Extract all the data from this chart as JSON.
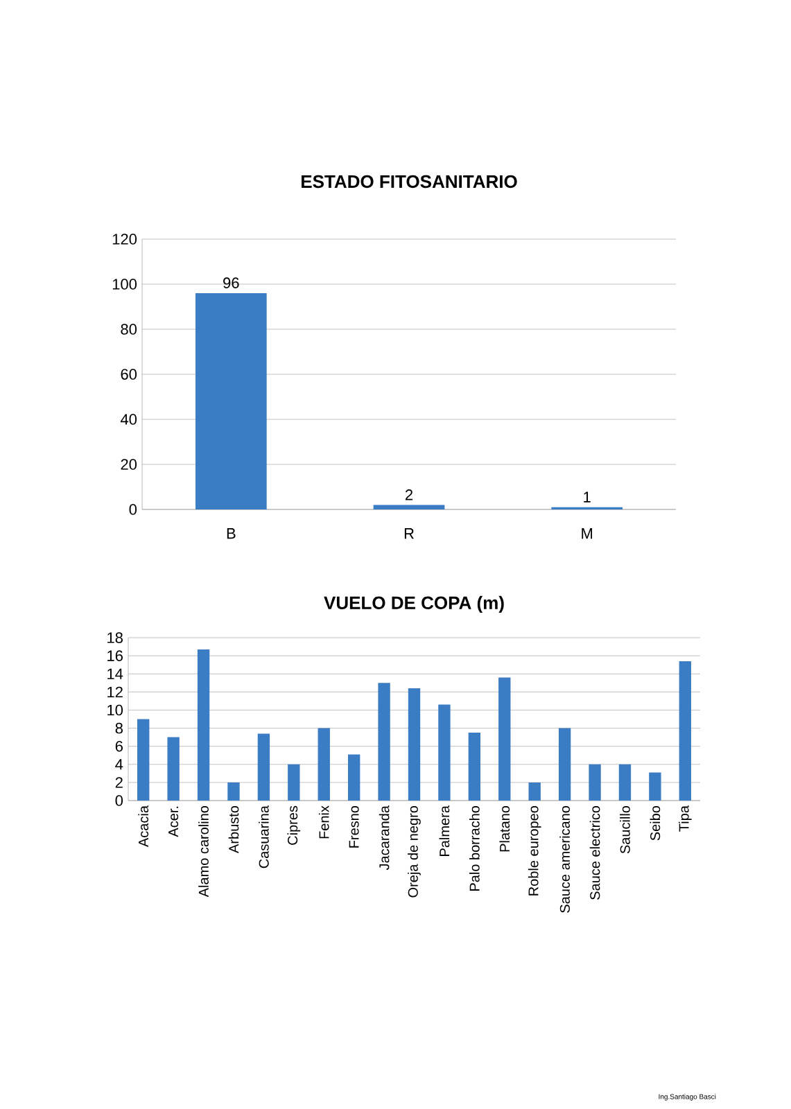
{
  "chart_data": [
    {
      "type": "bar",
      "title": "ESTADO FITOSANITARIO",
      "categories": [
        "B",
        "R",
        "M"
      ],
      "values": [
        96,
        2,
        1
      ],
      "color": "#3b7dc4",
      "ylim": [
        0,
        120
      ],
      "yticks": [
        0,
        20,
        40,
        60,
        80,
        100,
        120
      ],
      "grid": "y",
      "data_labels": true
    },
    {
      "type": "bar",
      "title": "VUELO DE COPA (m)",
      "categories": [
        "Acacia",
        "Acer.",
        "Alamo carolino",
        "Arbusto",
        "Casuarina",
        "Cipres",
        "Fenix",
        "Fresno",
        "Jacaranda",
        "Oreja de negro",
        "Palmera",
        "Palo borracho",
        "Platano",
        "Roble europeo",
        "Sauce americano",
        "Sauce electrico",
        "Saucillo",
        "Seibo",
        "Tipa"
      ],
      "values": [
        9.0,
        7.0,
        16.7,
        2.0,
        7.4,
        4.0,
        8.0,
        5.1,
        13.0,
        12.4,
        10.6,
        7.5,
        13.6,
        2.0,
        8.0,
        4.0,
        4.0,
        3.1,
        15.4
      ],
      "color": "#3b7dc4",
      "ylim": [
        0,
        18
      ],
      "yticks": [
        0,
        2,
        4,
        6,
        8,
        10,
        12,
        14,
        16,
        18
      ],
      "grid": "y",
      "annotations": [
        "Ing.Santiago Basci"
      ]
    }
  ]
}
